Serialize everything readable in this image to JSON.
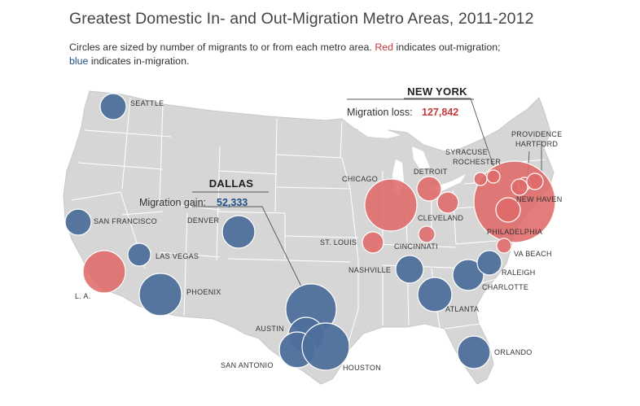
{
  "title": "Greatest Domestic In- and Out-Migration Metro Areas, 2011-2012",
  "subtitle": {
    "part1": "Circles are sized by number of migrants to or from each metro area. ",
    "red_word": "Red",
    "part2": " indicates out-migration; ",
    "blue_word": "blue",
    "part3": " indicates in-migration."
  },
  "colors": {
    "in_migration": "#4e6f9b",
    "out_migration": "#e06a6a",
    "land": "#d6d6d6",
    "state_border": "#ffffff"
  },
  "callouts": {
    "dallas": {
      "name": "DALLAS",
      "label": "Migration gain:",
      "value": "52,333"
    },
    "new_york": {
      "name": "NEW YORK",
      "label": "Migration loss:",
      "value": "127,842"
    }
  },
  "cities": [
    {
      "name": "SEATTLE",
      "direction": "in"
    },
    {
      "name": "SAN FRANCISCO",
      "direction": "in"
    },
    {
      "name": "L. A.",
      "direction": "out"
    },
    {
      "name": "LAS VEGAS",
      "direction": "in"
    },
    {
      "name": "PHOENIX",
      "direction": "in"
    },
    {
      "name": "DENVER",
      "direction": "in"
    },
    {
      "name": "DALLAS",
      "direction": "in"
    },
    {
      "name": "AUSTIN",
      "direction": "in"
    },
    {
      "name": "SAN ANTONIO",
      "direction": "in"
    },
    {
      "name": "HOUSTON",
      "direction": "in"
    },
    {
      "name": "CHICAGO",
      "direction": "out"
    },
    {
      "name": "ST. LOUIS",
      "direction": "out"
    },
    {
      "name": "DETROIT",
      "direction": "out"
    },
    {
      "name": "CLEVELAND",
      "direction": "out"
    },
    {
      "name": "CINCINNATI",
      "direction": "out"
    },
    {
      "name": "NASHVILLE",
      "direction": "in"
    },
    {
      "name": "ATLANTA",
      "direction": "in"
    },
    {
      "name": "CHARLOTTE",
      "direction": "in"
    },
    {
      "name": "RALEIGH",
      "direction": "in"
    },
    {
      "name": "ORLANDO",
      "direction": "in"
    },
    {
      "name": "NEW YORK",
      "direction": "out"
    },
    {
      "name": "SYRACUSE",
      "direction": "out"
    },
    {
      "name": "ROCHESTER",
      "direction": "out"
    },
    {
      "name": "HARTFORD",
      "direction": "out"
    },
    {
      "name": "PROVIDENCE",
      "direction": "out"
    },
    {
      "name": "NEW HAVEN",
      "direction": "out"
    },
    {
      "name": "PHILADELPHIA",
      "direction": "out"
    },
    {
      "name": "VA BEACH",
      "direction": "out"
    }
  ]
}
